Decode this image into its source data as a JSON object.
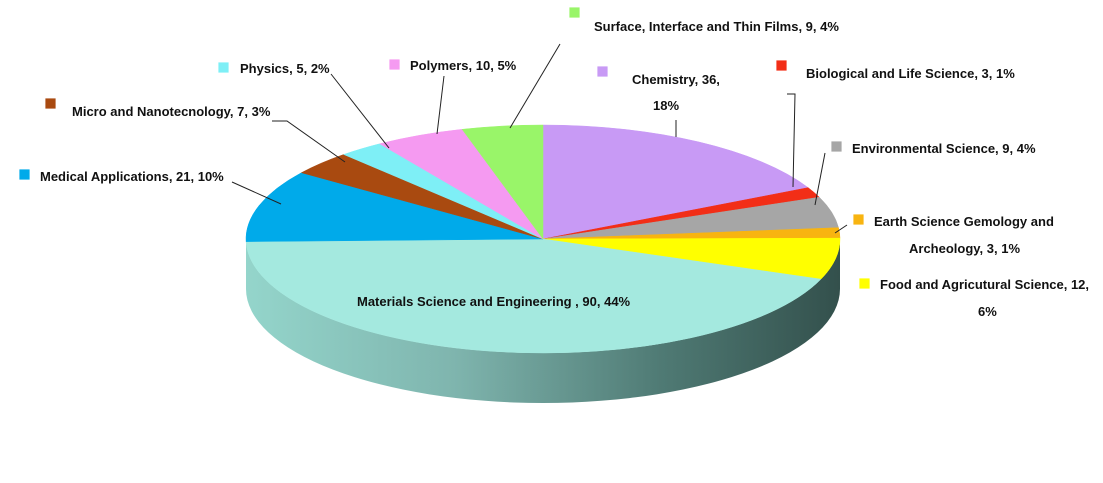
{
  "chart_data": {
    "type": "pie",
    "style": "3d",
    "legend": "none",
    "slices": [
      {
        "label": "Chemistry",
        "value": 36,
        "percent": "18%",
        "color": "#C89AF5"
      },
      {
        "label": "Biological and Life Science",
        "value": 3,
        "percent": "1%",
        "color": "#F22E17"
      },
      {
        "label": "Environmental Science",
        "value": 9,
        "percent": "4%",
        "color": "#A6A6A6"
      },
      {
        "label": "Earth Science Gemology and Archeology",
        "value": 3,
        "percent": "1%",
        "color": "#F8B410"
      },
      {
        "label": "Food and Agricutural Science",
        "value": 12,
        "percent": "6%",
        "color": "#FFFF00"
      },
      {
        "label": "Materials Science and Engineering",
        "value": 90,
        "percent": "44%",
        "color": "#A4E9DF"
      },
      {
        "label": "Medical Applications",
        "value": 21,
        "percent": "10%",
        "color": "#00AAEA"
      },
      {
        "label": "Micro and Nanotecnology",
        "value": 7,
        "percent": "3%",
        "color": "#A94A10"
      },
      {
        "label": "Physics",
        "value": 5,
        "percent": "2%",
        "color": "#7EEFF6"
      },
      {
        "label": "Polymers",
        "value": 10,
        "percent": "5%",
        "color": "#F59AF1"
      },
      {
        "label": "Surface, Interface and Thin Films",
        "value": 9,
        "percent": "4%",
        "color": "#99F569"
      }
    ]
  }
}
